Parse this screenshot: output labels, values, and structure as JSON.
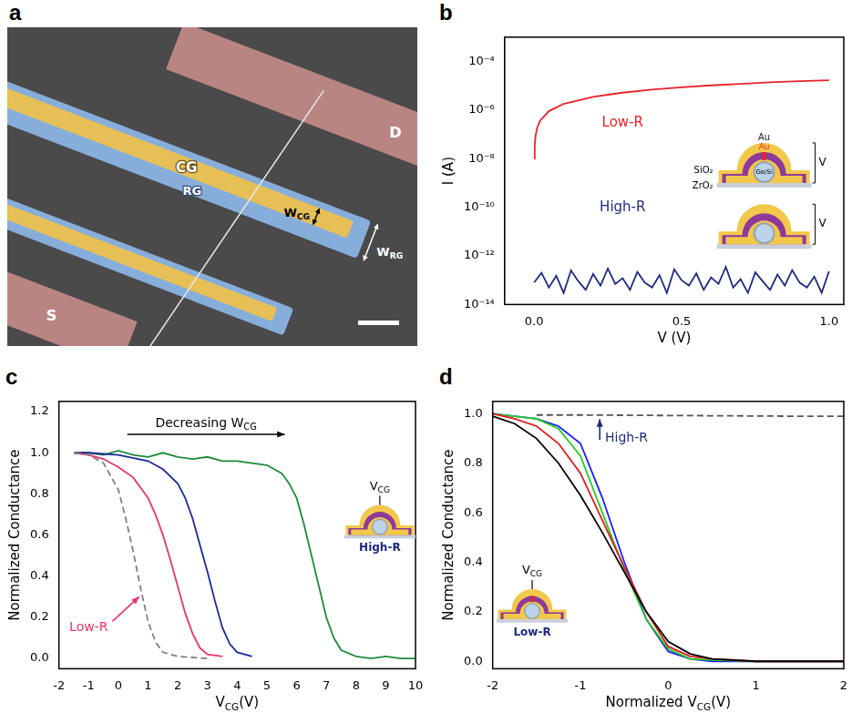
{
  "image_panel": {
    "panel": "a",
    "labels": {
      "control_gate": "CG",
      "resistive_gate": "RG",
      "drain": "D",
      "source": "S",
      "cg_width": [
        "W",
        {
          "sub": "CG"
        }
      ],
      "rg_width": [
        "W",
        {
          "sub": "RG"
        }
      ]
    }
  },
  "chart_data": [
    {
      "panel": "b",
      "type": "line",
      "x_label": "V (V)",
      "y_label": "I (A)",
      "log": "y",
      "grid": false,
      "xlim": [
        -0.1,
        1.05
      ],
      "xticks": [
        {
          "value": 0,
          "label": "0.0"
        },
        {
          "value": 0.5,
          "label": "0.5"
        },
        {
          "value": 1,
          "label": "1.0"
        }
      ],
      "ylim": [
        1e-14,
        0.001
      ],
      "yticks": [
        {
          "value": 1e-14,
          "label": "10⁻¹⁴"
        },
        {
          "value": 1e-12,
          "label": "10⁻¹²"
        },
        {
          "value": 1e-10,
          "label": "10⁻¹⁰"
        },
        {
          "value": 1e-08,
          "label": "10⁻⁸"
        },
        {
          "value": 1e-06,
          "label": "10⁻⁶"
        },
        {
          "value": 0.0001,
          "label": "10⁻⁴"
        }
      ],
      "series": [
        {
          "color": "#e8222a",
          "line_style": "solid",
          "x": [
            0.0006,
            0.002,
            0.005,
            0.01,
            0.02,
            0.05,
            0.1,
            0.2,
            0.3,
            0.4,
            0.5,
            0.6,
            0.7,
            0.8,
            0.9,
            1.0
          ],
          "values": [
            1e-08,
            3.5e-08,
            9e-08,
            1.8e-07,
            3.6e-07,
            9e-07,
            1.8e-06,
            3.5e-06,
            5.2e-06,
            7e-06,
            8.7e-06,
            1.04e-05,
            1.2e-05,
            1.38e-05,
            1.55e-05,
            1.7e-05
          ]
        },
        {
          "color": "#1f2a80",
          "line_style": "solid",
          "x": [
            0,
            0.025,
            0.05,
            0.075,
            0.1,
            0.125,
            0.15,
            0.175,
            0.2,
            0.225,
            0.25,
            0.275,
            0.3,
            0.325,
            0.35,
            0.375,
            0.4,
            0.425,
            0.45,
            0.475,
            0.5,
            0.525,
            0.55,
            0.575,
            0.6,
            0.625,
            0.65,
            0.675,
            0.7,
            0.725,
            0.75,
            0.775,
            0.8,
            0.825,
            0.85,
            0.875,
            0.9,
            0.925,
            0.95,
            0.975,
            1.0
          ],
          "values": [
            8e-14,
            2e-13,
            5e-14,
            1.5e-13,
            3e-14,
            2.5e-13,
            9e-14,
            4e-14,
            1.8e-13,
            6e-14,
            3e-13,
            7e-14,
            1.2e-13,
            4e-14,
            2.2e-13,
            8e-14,
            5e-14,
            1.6e-13,
            3e-14,
            2.8e-13,
            1e-13,
            6e-14,
            1.9e-13,
            4e-14,
            1.3e-13,
            7e-14,
            3.5e-13,
            5e-14,
            1.1e-13,
            3e-14,
            2.1e-13,
            9e-14,
            4e-14,
            1.7e-13,
            6e-14,
            2.6e-13,
            8e-14,
            5e-14,
            1.4e-13,
            3e-14,
            2.3e-13
          ]
        }
      ],
      "annotations": {
        "low_r": "Low-R",
        "high_r": "High-R"
      },
      "insets": [
        {
          "top": "Au",
          "filament": "Au",
          "shell": "SiO₂",
          "layer": "ZrO₂",
          "core": "Ge/Si",
          "bias": "V"
        },
        {
          "bias": "V"
        }
      ]
    },
    {
      "panel": "c",
      "type": "line",
      "x_label": [
        "V",
        {
          "sub": "CG"
        },
        "(V)"
      ],
      "y_label": "Normalized Conductance",
      "grid": false,
      "xlim": [
        -2,
        10
      ],
      "xticks": [
        -2,
        -1,
        0,
        1,
        2,
        3,
        4,
        5,
        6,
        7,
        8,
        9,
        10
      ],
      "ylim": [
        -0.05,
        1.25
      ],
      "yticks": [
        {
          "value": 0,
          "label": "0.0"
        },
        {
          "value": 0.2,
          "label": "0.2"
        },
        {
          "value": 0.4,
          "label": "0.4"
        },
        {
          "value": 0.6,
          "label": "0.6"
        },
        {
          "value": 0.8,
          "label": "0.8"
        },
        {
          "value": 1,
          "label": "1.0"
        },
        {
          "value": 1.2,
          "label": "1.2"
        }
      ],
      "series": [
        {
          "color": "#808080",
          "line_style": "dashed",
          "x": [
            -1.5,
            -1,
            -0.5,
            0,
            0.25,
            0.5,
            0.75,
            1.0,
            1.25,
            1.5,
            2,
            2.5,
            3
          ],
          "values": [
            1.0,
            0.99,
            0.95,
            0.82,
            0.68,
            0.52,
            0.34,
            0.18,
            0.08,
            0.03,
            0.01,
            0.005,
            0
          ]
        },
        {
          "color": "#e8336b",
          "line_style": "solid",
          "x": [
            -1.5,
            -1,
            -0.5,
            0,
            0.5,
            1.0,
            1.25,
            1.5,
            1.75,
            2.0,
            2.25,
            2.5,
            2.75,
            3.0,
            3.5
          ],
          "values": [
            1.0,
            0.99,
            0.97,
            0.93,
            0.88,
            0.78,
            0.7,
            0.6,
            0.48,
            0.35,
            0.22,
            0.12,
            0.05,
            0.02,
            0.01
          ]
        },
        {
          "color": "#1a2a99",
          "line_style": "solid",
          "x": [
            -1.5,
            -1,
            0,
            1,
            1.5,
            2.0,
            2.25,
            2.5,
            2.75,
            3.0,
            3.25,
            3.5,
            3.75,
            4.0,
            4.5
          ],
          "values": [
            1.0,
            1.0,
            0.99,
            0.96,
            0.92,
            0.85,
            0.78,
            0.68,
            0.55,
            0.42,
            0.28,
            0.15,
            0.07,
            0.03,
            0.01
          ]
        },
        {
          "color": "#1e8b3a",
          "line_style": "solid",
          "x": [
            -1.5,
            -1,
            -0.5,
            0,
            0.5,
            1,
            1.5,
            2,
            2.5,
            3,
            3.5,
            4,
            4.5,
            5,
            5.5,
            5.75,
            6,
            6.25,
            6.5,
            6.75,
            7,
            7.25,
            7.5,
            8,
            8.5,
            9,
            9.5,
            10
          ],
          "values": [
            1.0,
            1.0,
            0.99,
            1.01,
            0.99,
            0.98,
            1.0,
            0.98,
            0.97,
            0.98,
            0.96,
            0.96,
            0.95,
            0.94,
            0.9,
            0.85,
            0.78,
            0.65,
            0.5,
            0.35,
            0.2,
            0.1,
            0.04,
            0.01,
            0,
            0.01,
            0,
            0
          ]
        }
      ],
      "annotations": {
        "trend": [
          "Decreasing W",
          {
            "sub": "CG"
          }
        ],
        "state": "Low-R"
      },
      "insets": [
        {
          "gate": [
            "V",
            {
              "sub": "CG"
            }
          ],
          "state": "High-R"
        }
      ]
    },
    {
      "panel": "d",
      "type": "line",
      "x_label": [
        "Normalized V",
        {
          "sub": "CG"
        },
        "(V)"
      ],
      "y_label": "Normalized Conductance",
      "grid": false,
      "xlim": [
        -2,
        2
      ],
      "xticks": [
        -2,
        -1,
        0,
        1,
        2
      ],
      "ylim": [
        -0.03,
        1.05
      ],
      "yticks": [
        {
          "value": 0,
          "label": "0.0"
        },
        {
          "value": 0.2,
          "label": "0.2"
        },
        {
          "value": 0.4,
          "label": "0.4"
        },
        {
          "value": 0.6,
          "label": "0.6"
        },
        {
          "value": 0.8,
          "label": "0.8"
        },
        {
          "value": 1,
          "label": "1.0"
        }
      ],
      "series": [
        {
          "color": "#000000",
          "line_style": "solid",
          "x": [
            -2,
            -1.75,
            -1.5,
            -1.25,
            -1,
            -0.75,
            -0.5,
            -0.25,
            0,
            0.25,
            0.5,
            1,
            2
          ],
          "values": [
            0.99,
            0.96,
            0.9,
            0.8,
            0.67,
            0.52,
            0.36,
            0.2,
            0.08,
            0.03,
            0.01,
            0,
            0
          ]
        },
        {
          "color": "#e31a1c",
          "line_style": "solid",
          "x": [
            -2,
            -1.75,
            -1.5,
            -1.25,
            -1,
            -0.75,
            -0.5,
            -0.25,
            0,
            0.25,
            0.5,
            1,
            2
          ],
          "values": [
            1.0,
            0.98,
            0.95,
            0.88,
            0.76,
            0.57,
            0.38,
            0.2,
            0.06,
            0.02,
            0.01,
            0,
            0
          ]
        },
        {
          "color": "#22cc22",
          "line_style": "solid",
          "x": [
            -2,
            -1.75,
            -1.5,
            -1.25,
            -1,
            -0.75,
            -0.5,
            -0.25,
            0,
            0.25,
            0.5,
            1,
            2
          ],
          "values": [
            1.0,
            0.99,
            0.98,
            0.94,
            0.83,
            0.6,
            0.37,
            0.17,
            0.05,
            0.01,
            0.005,
            0,
            0
          ]
        },
        {
          "color": "#1a1aff",
          "line_style": "solid",
          "x": [
            -2,
            -1.75,
            -1.5,
            -1.25,
            -1,
            -0.75,
            -0.5,
            -0.25,
            0,
            0.25,
            0.5,
            1,
            2
          ],
          "values": [
            1.0,
            0.99,
            0.98,
            0.95,
            0.88,
            0.66,
            0.4,
            0.17,
            0.04,
            0.01,
            0,
            0,
            0
          ]
        },
        {
          "color": "#555555",
          "line_style": "dashed",
          "x": [
            -1.5,
            -1,
            -0.5,
            0,
            0.5,
            1,
            1.5,
            2
          ],
          "values": [
            0.995,
            0.995,
            0.994,
            0.993,
            0.992,
            0.991,
            0.99,
            0.99
          ]
        }
      ],
      "annotations": {
        "state": "High-R"
      },
      "insets": [
        {
          "gate": [
            "V",
            {
              "sub": "CG"
            }
          ],
          "state": "Low-R"
        }
      ]
    }
  ]
}
